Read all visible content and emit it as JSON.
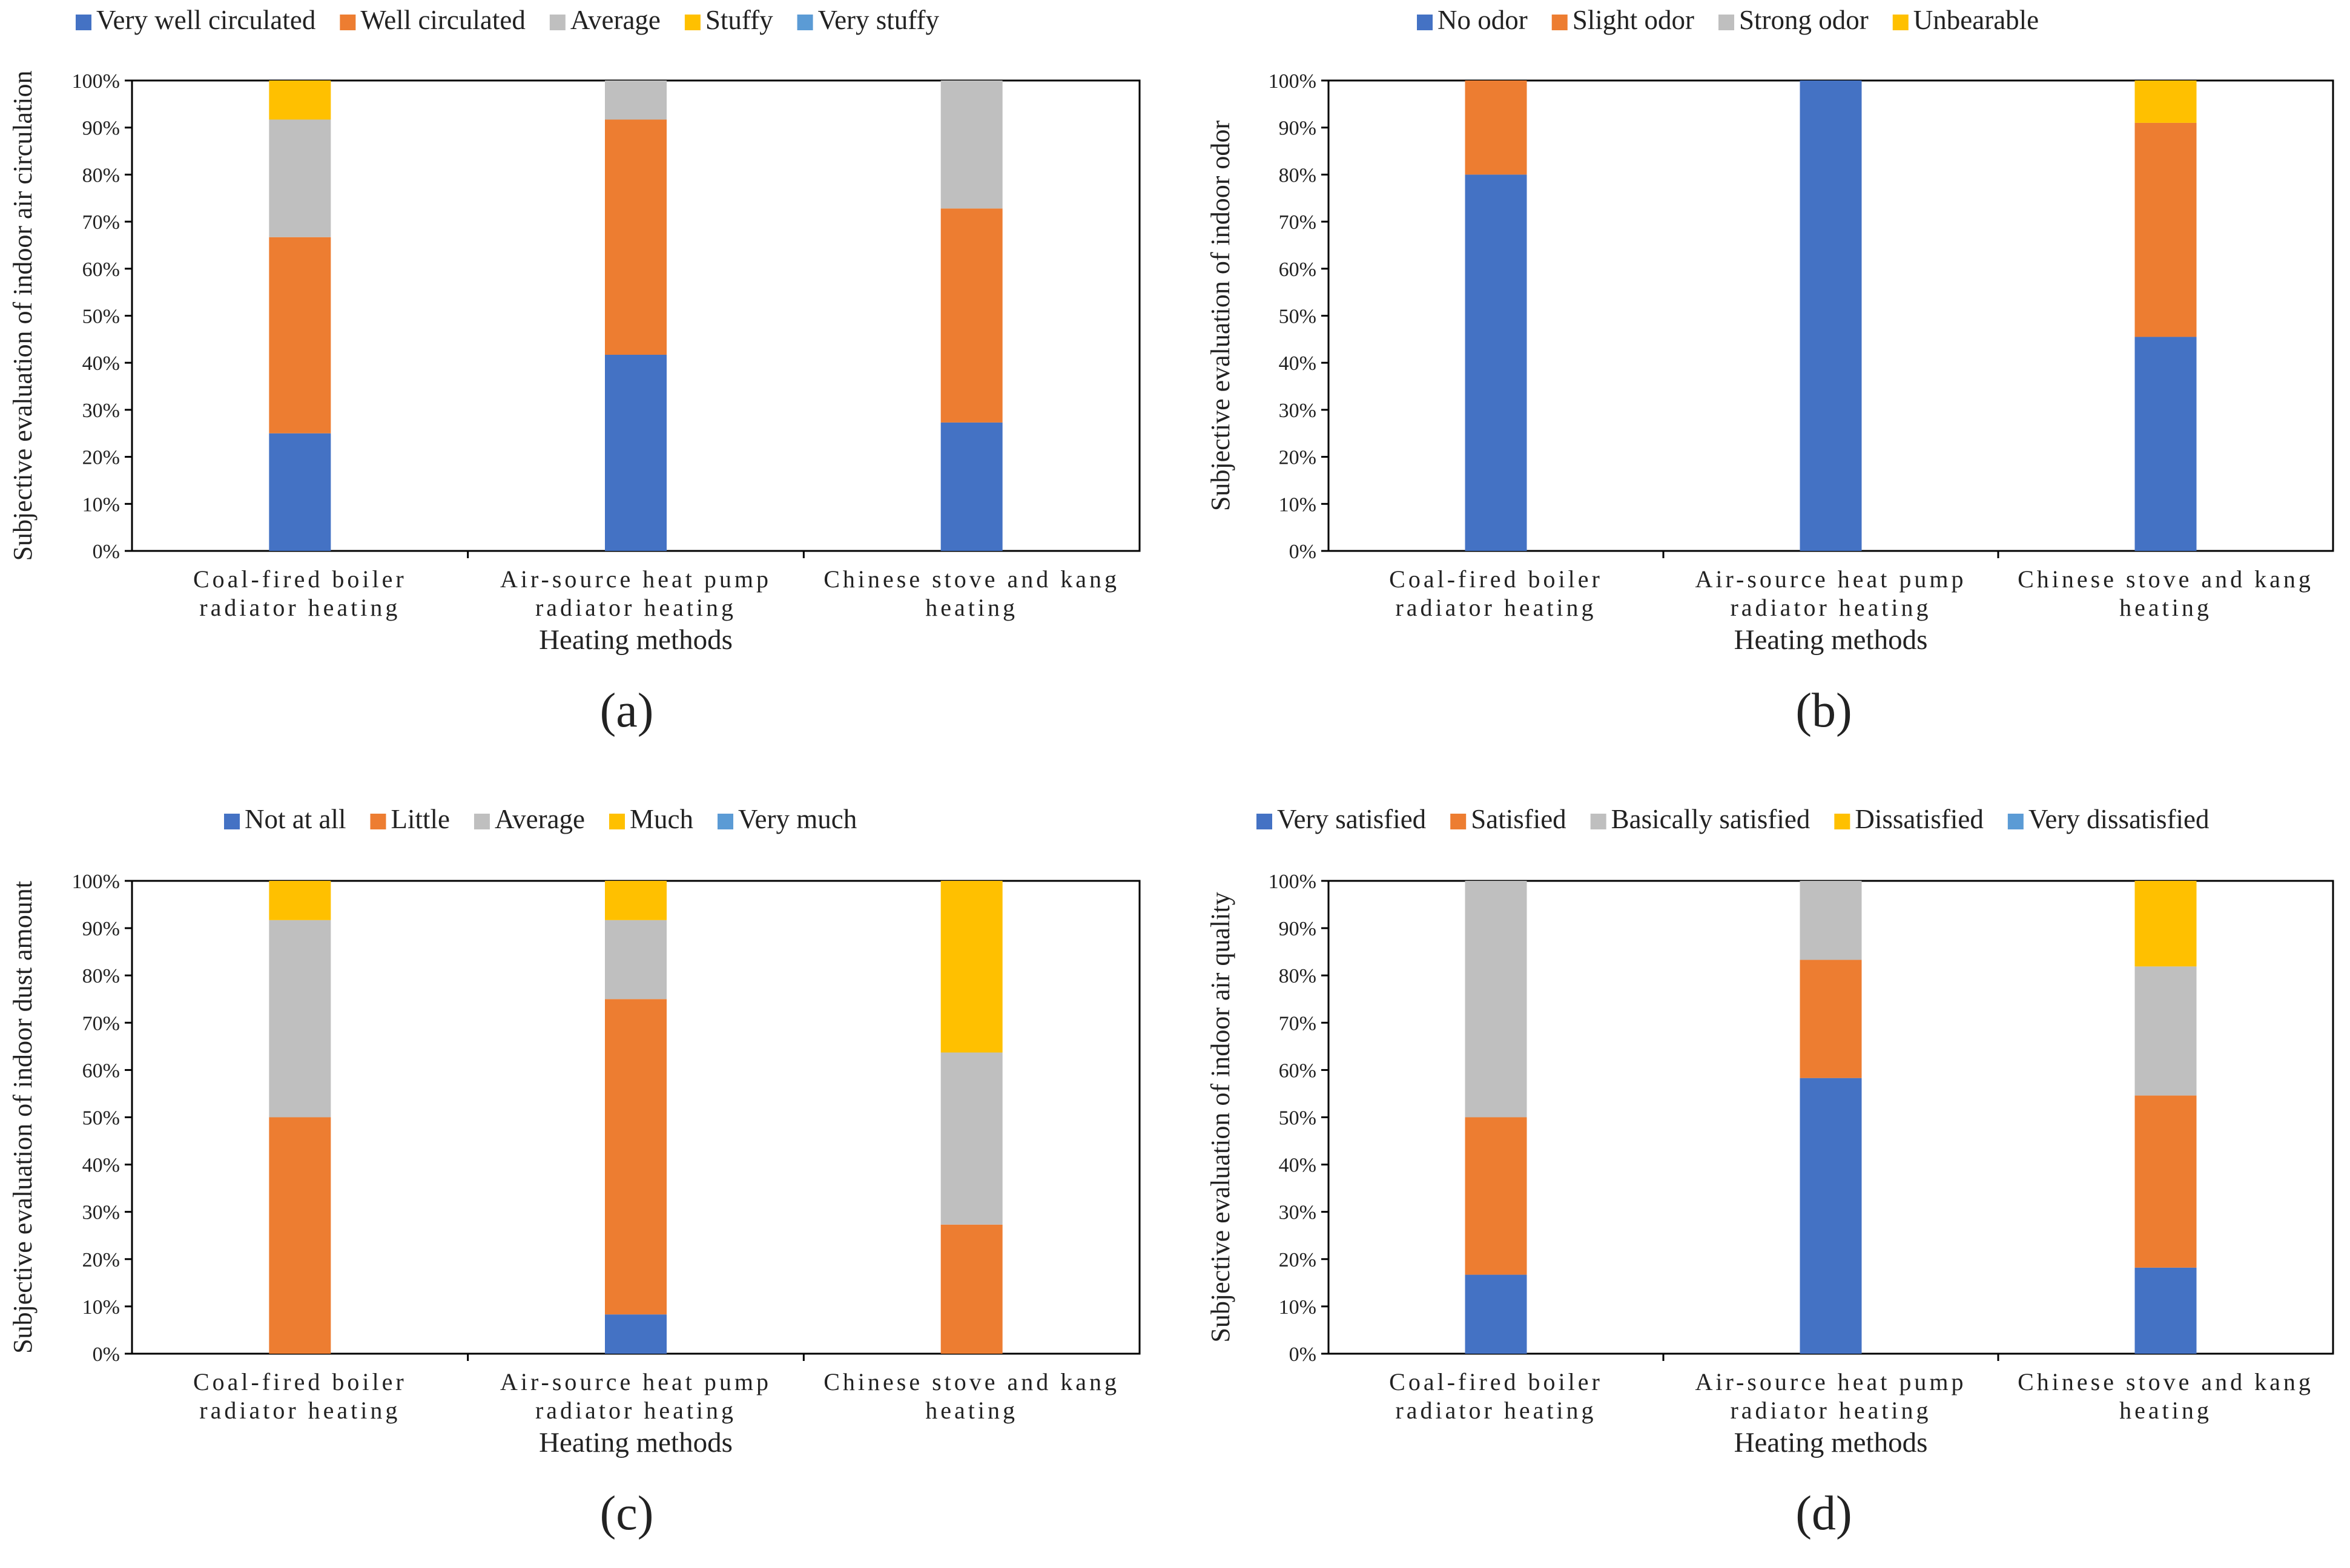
{
  "colors": {
    "blue": "#4472C4",
    "orange": "#ED7D31",
    "gray": "#BFBFBF",
    "yellow": "#FFC000",
    "lightblue": "#5B9BD5"
  },
  "chart_data": [
    {
      "id": "a",
      "type": "bar",
      "stacked": true,
      "caption": "(a)",
      "xlabel": "Heating methods",
      "ylabel": "Subjective evaluation of indoor air circulation",
      "ylim": [
        0,
        100
      ],
      "yticks": [
        "0%",
        "10%",
        "20%",
        "30%",
        "40%",
        "50%",
        "60%",
        "70%",
        "80%",
        "90%",
        "100%"
      ],
      "categories": [
        [
          "Coal-fired boiler",
          "radiator heating"
        ],
        [
          "Air-source heat pump",
          "radiator heating"
        ],
        [
          "Chinese stove and kang",
          "heating"
        ]
      ],
      "series": [
        {
          "name": "Very well circulated",
          "color": "blue",
          "values": [
            25,
            41.7,
            27.3
          ]
        },
        {
          "name": "Well circulated",
          "color": "orange",
          "values": [
            41.7,
            50,
            45.5
          ]
        },
        {
          "name": "Average",
          "color": "gray",
          "values": [
            25,
            8.3,
            27.2
          ]
        },
        {
          "name": "Stuffy",
          "color": "yellow",
          "values": [
            8.3,
            0,
            0
          ]
        },
        {
          "name": "Very stuffy",
          "color": "lightblue",
          "values": [
            0,
            0,
            0
          ]
        }
      ]
    },
    {
      "id": "b",
      "type": "bar",
      "stacked": true,
      "caption": "(b)",
      "xlabel": "Heating methods",
      "ylabel": "Subjective evaluation of indoor odor",
      "ylim": [
        0,
        100
      ],
      "yticks": [
        "0%",
        "10%",
        "20%",
        "30%",
        "40%",
        "50%",
        "60%",
        "70%",
        "80%",
        "90%",
        "100%"
      ],
      "categories": [
        [
          "Coal-fired boiler",
          "radiator heating"
        ],
        [
          "Air-source heat pump",
          "radiator heating"
        ],
        [
          "Chinese stove and kang",
          "heating"
        ]
      ],
      "series": [
        {
          "name": "No odor",
          "color": "blue",
          "values": [
            80,
            100,
            45.5
          ]
        },
        {
          "name": "Slight odor",
          "color": "orange",
          "values": [
            20,
            0,
            45.5
          ]
        },
        {
          "name": "Strong odor",
          "color": "gray",
          "values": [
            0,
            0,
            0
          ]
        },
        {
          "name": "Unbearable",
          "color": "yellow",
          "values": [
            0,
            0,
            9
          ]
        }
      ]
    },
    {
      "id": "c",
      "type": "bar",
      "stacked": true,
      "caption": "(c)",
      "xlabel": "Heating methods",
      "ylabel": "Subjective evaluation of indoor dust amount",
      "ylim": [
        0,
        100
      ],
      "yticks": [
        "0%",
        "10%",
        "20%",
        "30%",
        "40%",
        "50%",
        "60%",
        "70%",
        "80%",
        "90%",
        "100%"
      ],
      "categories": [
        [
          "Coal-fired boiler",
          "radiator heating"
        ],
        [
          "Air-source heat pump",
          "radiator heating"
        ],
        [
          "Chinese stove and kang",
          "heating"
        ]
      ],
      "series": [
        {
          "name": "Not at all",
          "color": "blue",
          "values": [
            0,
            8.3,
            0
          ]
        },
        {
          "name": "Little",
          "color": "orange",
          "values": [
            50,
            66.7,
            27.3
          ]
        },
        {
          "name": "Average",
          "color": "gray",
          "values": [
            41.7,
            16.7,
            36.4
          ]
        },
        {
          "name": "Much",
          "color": "yellow",
          "values": [
            8.3,
            8.3,
            36.3
          ]
        },
        {
          "name": "Very much",
          "color": "lightblue",
          "values": [
            0,
            0,
            0
          ]
        }
      ]
    },
    {
      "id": "d",
      "type": "bar",
      "stacked": true,
      "caption": "(d)",
      "xlabel": "Heating methods",
      "ylabel": "Subjective evaluation of indoor air quality",
      "ylim": [
        0,
        100
      ],
      "yticks": [
        "0%",
        "10%",
        "20%",
        "30%",
        "40%",
        "50%",
        "60%",
        "70%",
        "80%",
        "90%",
        "100%"
      ],
      "categories": [
        [
          "Coal-fired boiler",
          "radiator heating"
        ],
        [
          "Air-source heat pump",
          "radiator heating"
        ],
        [
          "Chinese stove and kang",
          "heating"
        ]
      ],
      "series": [
        {
          "name": "Very satisfied",
          "color": "blue",
          "values": [
            16.7,
            58.3,
            18.2
          ]
        },
        {
          "name": "Satisfied",
          "color": "orange",
          "values": [
            33.3,
            25,
            36.4
          ]
        },
        {
          "name": "Basically satisfied",
          "color": "gray",
          "values": [
            50,
            16.7,
            27.3
          ]
        },
        {
          "name": "Dissatisfied",
          "color": "yellow",
          "values": [
            0,
            0,
            18.1
          ]
        },
        {
          "name": "Very dissatisfied",
          "color": "lightblue",
          "values": [
            0,
            0,
            0
          ]
        }
      ]
    }
  ]
}
